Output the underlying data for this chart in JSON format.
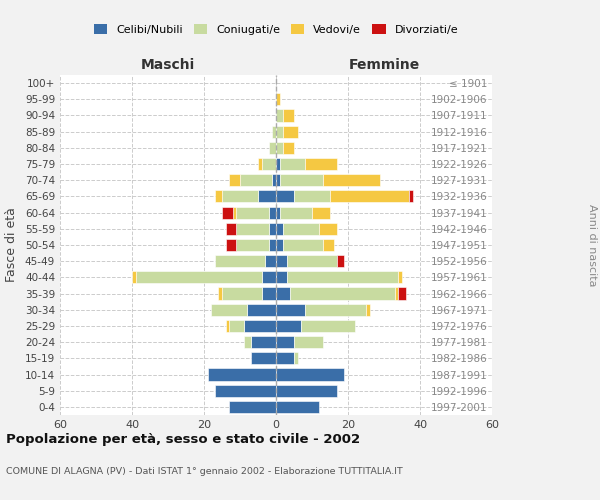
{
  "age_groups": [
    "0-4",
    "5-9",
    "10-14",
    "15-19",
    "20-24",
    "25-29",
    "30-34",
    "35-39",
    "40-44",
    "45-49",
    "50-54",
    "55-59",
    "60-64",
    "65-69",
    "70-74",
    "75-79",
    "80-84",
    "85-89",
    "90-94",
    "95-99",
    "100+"
  ],
  "birth_years": [
    "1997-2001",
    "1992-1996",
    "1987-1991",
    "1982-1986",
    "1977-1981",
    "1972-1976",
    "1967-1971",
    "1962-1966",
    "1957-1961",
    "1952-1956",
    "1947-1951",
    "1942-1946",
    "1937-1941",
    "1932-1936",
    "1927-1931",
    "1922-1926",
    "1917-1921",
    "1912-1916",
    "1907-1911",
    "1902-1906",
    "≤ 1901"
  ],
  "maschi": {
    "celibi": [
      13,
      17,
      19,
      7,
      7,
      9,
      8,
      4,
      4,
      3,
      2,
      2,
      2,
      5,
      1,
      0,
      0,
      0,
      0,
      0,
      0
    ],
    "coniugati": [
      0,
      0,
      0,
      0,
      2,
      4,
      10,
      11,
      35,
      14,
      9,
      9,
      9,
      10,
      9,
      4,
      2,
      1,
      0,
      0,
      0
    ],
    "vedovi": [
      0,
      0,
      0,
      0,
      0,
      1,
      0,
      1,
      1,
      0,
      0,
      0,
      1,
      2,
      3,
      1,
      0,
      0,
      0,
      0,
      0
    ],
    "divorziati": [
      0,
      0,
      0,
      0,
      0,
      0,
      0,
      0,
      0,
      0,
      3,
      3,
      3,
      0,
      0,
      0,
      0,
      0,
      0,
      0,
      0
    ]
  },
  "femmine": {
    "nubili": [
      12,
      17,
      19,
      5,
      5,
      7,
      8,
      4,
      3,
      3,
      2,
      2,
      1,
      5,
      1,
      1,
      0,
      0,
      0,
      0,
      0
    ],
    "coniugate": [
      0,
      0,
      0,
      1,
      8,
      15,
      17,
      29,
      31,
      14,
      11,
      10,
      9,
      10,
      12,
      7,
      2,
      2,
      2,
      0,
      0
    ],
    "vedove": [
      0,
      0,
      0,
      0,
      0,
      0,
      1,
      1,
      1,
      0,
      3,
      5,
      5,
      22,
      16,
      9,
      3,
      4,
      3,
      1,
      0
    ],
    "divorziate": [
      0,
      0,
      0,
      0,
      0,
      0,
      0,
      2,
      0,
      2,
      0,
      0,
      0,
      1,
      0,
      0,
      0,
      0,
      0,
      0,
      0
    ]
  },
  "colors": {
    "celibi_nubili": "#3a6ea8",
    "coniugati": "#c8dba0",
    "vedovi": "#f5c842",
    "divorziati": "#cc1111"
  },
  "xlim": 60,
  "title": "Popolazione per età, sesso e stato civile - 2002",
  "subtitle": "COMUNE DI ALAGNA (PV) - Dati ISTAT 1° gennaio 2002 - Elaborazione TUTTITALIA.IT",
  "xlabel_left": "Maschi",
  "xlabel_right": "Femmine",
  "ylabel_left": "Fasce di età",
  "ylabel_right": "Anni di nascita",
  "legend_labels": [
    "Celibi/Nubili",
    "Coniugati/e",
    "Vedovi/e",
    "Divorziati/e"
  ],
  "bg_color": "#f2f2f2",
  "plot_bg": "#ffffff",
  "grid_color": "#cccccc"
}
